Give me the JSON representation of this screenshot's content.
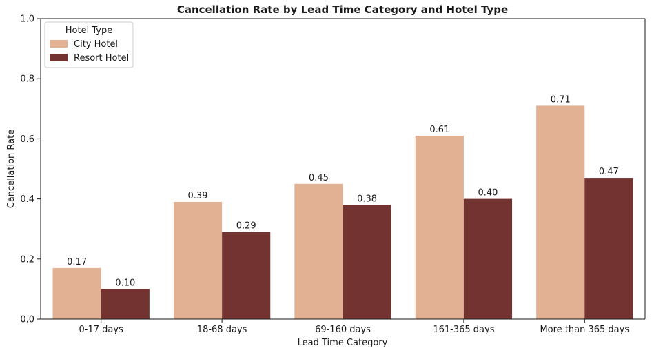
{
  "chart_data": {
    "type": "bar",
    "title": "Cancellation Rate by Lead Time Category and Hotel Type",
    "xlabel": "Lead Time Category",
    "ylabel": "Cancellation Rate",
    "ylim": [
      0,
      1.0
    ],
    "yticks": [
      "0.0",
      "0.2",
      "0.4",
      "0.6",
      "0.8",
      "1.0"
    ],
    "categories": [
      "0-17 days",
      "18-68 days",
      "69-160 days",
      "161-365 days",
      "More than 365 days"
    ],
    "series": [
      {
        "name": "City Hotel",
        "color": "#e2b093",
        "values": [
          0.17,
          0.39,
          0.45,
          0.61,
          0.71
        ],
        "labels": [
          "0.17",
          "0.39",
          "0.45",
          "0.61",
          "0.71"
        ]
      },
      {
        "name": "Resort Hotel",
        "color": "#733330",
        "values": [
          0.1,
          0.29,
          0.38,
          0.4,
          0.47
        ],
        "labels": [
          "0.10",
          "0.29",
          "0.38",
          "0.40",
          "0.47"
        ]
      }
    ],
    "legend": {
      "title": "Hotel Type",
      "placement": "top-left"
    },
    "grid": false
  }
}
